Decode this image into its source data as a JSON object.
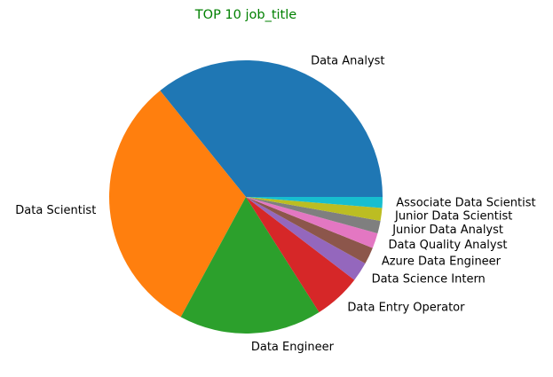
{
  "chart_data": {
    "type": "pie",
    "title": "TOP 10 job_title",
    "title_color": "#008000",
    "labels": [
      "Data Analyst",
      "Data Scientist",
      "Data Engineer",
      "Data Entry Operator",
      "Data Science Intern",
      "Azure Data Engineer",
      "Data Quality Analyst",
      "Junior Data Analyst",
      "Junior Data Scientist",
      "Associate Data Scientist"
    ],
    "values": [
      35.8,
      31.3,
      16.9,
      5.6,
      2.3,
      2.0,
      1.8,
      1.5,
      1.5,
      1.3
    ],
    "colors": [
      "#1f77b4",
      "#ff7f0e",
      "#2ca02c",
      "#d62728",
      "#9467bd",
      "#8c564b",
      "#e377c2",
      "#7f7f7f",
      "#bcbd22",
      "#17becf"
    ],
    "start_angle_deg": 0,
    "direction": "counterclockwise",
    "legend": "none",
    "grid": false
  }
}
